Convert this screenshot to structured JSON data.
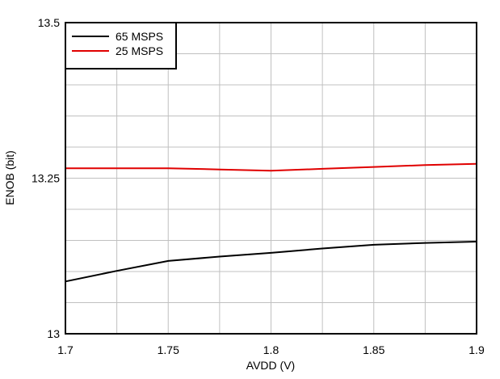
{
  "chart_data": {
    "type": "line",
    "title": "",
    "xlabel": "AVDD (V)",
    "ylabel": "ENOB (bit)",
    "xlim": [
      1.7,
      1.9
    ],
    "ylim": [
      13,
      13.5
    ],
    "x_ticks": [
      "1.7",
      "1.75",
      "1.8",
      "1.85",
      "1.9"
    ],
    "y_ticks": [
      "13",
      "13.25",
      "13.5"
    ],
    "grid": true,
    "legend_position": "upper-left",
    "x": [
      1.7,
      1.725,
      1.75,
      1.775,
      1.8,
      1.825,
      1.85,
      1.875,
      1.9
    ],
    "series": [
      {
        "name": "65 MSPS",
        "color": "#000000",
        "values": [
          13.084,
          13.101,
          13.117,
          13.124,
          13.13,
          13.137,
          13.143,
          13.146,
          13.148
        ]
      },
      {
        "name": "25 MSPS",
        "color": "#e00000",
        "values": [
          13.266,
          13.266,
          13.266,
          13.264,
          13.262,
          13.265,
          13.268,
          13.271,
          13.273
        ]
      }
    ]
  }
}
